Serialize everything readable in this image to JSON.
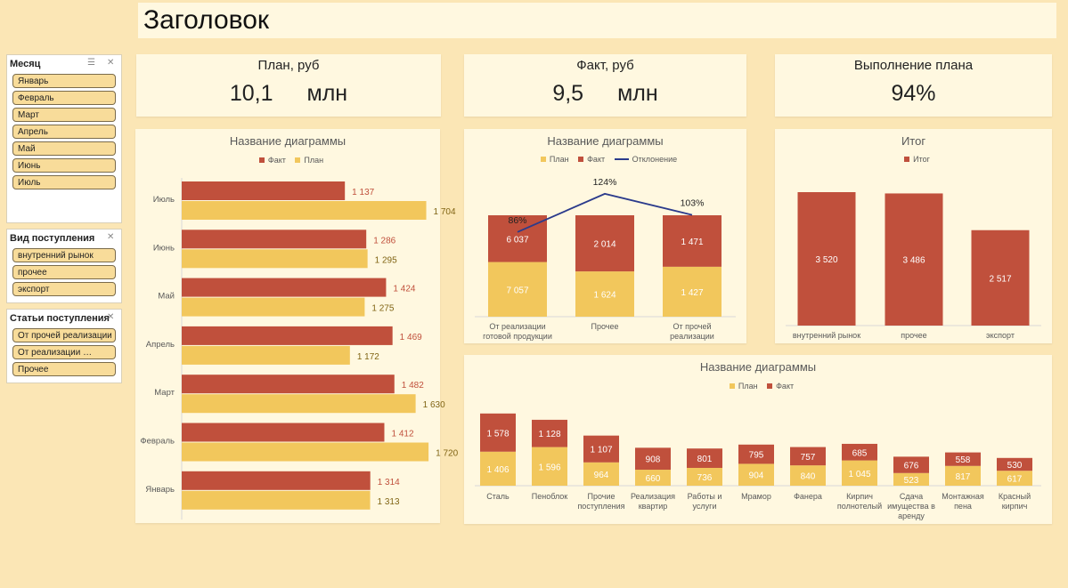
{
  "header": {
    "title": "Заголовок"
  },
  "colors": {
    "plan": "#f2c75c",
    "fact": "#c0503c",
    "deviation": "#2b3b8c",
    "panel": "#fff8e0",
    "background": "#fbe6b5"
  },
  "slicers": [
    {
      "title": "Месяц",
      "items": [
        "Январь",
        "Февраль",
        "Март",
        "Апрель",
        "Май",
        "Июнь",
        "Июль"
      ]
    },
    {
      "title": "Вид поступления",
      "items": [
        "внутренний рынок",
        "прочее",
        "экспорт"
      ]
    },
    {
      "title": "Статьи поступления",
      "items": [
        "От прочей реализации",
        "От реализации …",
        "Прочее"
      ]
    }
  ],
  "kpis": {
    "plan": {
      "title": "План, руб",
      "value": "10,1",
      "unit": "млн"
    },
    "fact": {
      "title": "Факт, руб",
      "value": "9,5",
      "unit": "млн"
    },
    "completion": {
      "title": "Выполнение плана",
      "value": "94%"
    }
  },
  "chart_data": [
    {
      "type": "bar",
      "orientation": "horizontal",
      "title": "Название диаграммы",
      "legend": [
        "Факт",
        "План"
      ],
      "legend_position": "top",
      "categories": [
        "Июль",
        "Июнь",
        "Май",
        "Апрель",
        "Март",
        "Февраль",
        "Январь"
      ],
      "series": [
        {
          "name": "Факт",
          "values": [
            1137,
            1286,
            1424,
            1469,
            1482,
            1412,
            1314
          ],
          "labels": [
            "1 137",
            "1 286",
            "1 424",
            "1 469",
            "1 482",
            "1 412",
            "1 314"
          ]
        },
        {
          "name": "План",
          "values": [
            1704,
            1295,
            1275,
            1172,
            1630,
            1720,
            1313
          ],
          "labels": [
            "1 704",
            "1 295",
            "1 275",
            "1 172",
            "1 630",
            "1 720",
            "1 313"
          ]
        }
      ],
      "xlim": [
        0,
        1800
      ]
    },
    {
      "type": "bar",
      "stacked": true,
      "title": "Название диаграммы",
      "legend": [
        "План",
        "Факт",
        "Отклонение"
      ],
      "legend_position": "top",
      "categories": [
        "От реализации готовой продукции",
        "Прочее",
        "От прочей реализации"
      ],
      "category_lines": [
        [
          "От реализации",
          "готовой продукции"
        ],
        [
          "Прочее"
        ],
        [
          "От прочей",
          "реализации"
        ]
      ],
      "series": [
        {
          "name": "План",
          "values": [
            7057,
            1624,
            1427
          ],
          "labels": [
            "7 057",
            "1 624",
            "1 427"
          ]
        },
        {
          "name": "Факт",
          "values": [
            6037,
            2014,
            1471
          ],
          "labels": [
            "6 037",
            "2 014",
            "1 471"
          ]
        },
        {
          "name": "Отклонение",
          "type": "line",
          "values": [
            86,
            124,
            103
          ],
          "labels": [
            "86%",
            "124%",
            "103%"
          ]
        }
      ]
    },
    {
      "type": "bar",
      "title": "Итог",
      "legend": [
        "Итог"
      ],
      "legend_position": "top",
      "categories": [
        "внутренний рынок",
        "прочее",
        "экспорт"
      ],
      "series": [
        {
          "name": "Итог",
          "values": [
            3520,
            3486,
            2517
          ],
          "labels": [
            "3 520",
            "3 486",
            "2 517"
          ]
        }
      ],
      "ylim": [
        0,
        3600
      ]
    },
    {
      "type": "bar",
      "stacked": true,
      "title": "Название диаграммы",
      "legend": [
        "План",
        "Факт"
      ],
      "legend_position": "top",
      "categories": [
        "Сталь",
        "Пеноблок",
        "Прочие поступления",
        "Реализация квартир",
        "Работы и услуги",
        "Мрамор",
        "Фанера",
        "Кирпич полнотелый",
        "Сдача имущества в аренду",
        "Монтажная пена",
        "Красный кирпич"
      ],
      "category_lines": [
        [
          "Сталь"
        ],
        [
          "Пеноблок"
        ],
        [
          "Прочие",
          "поступления"
        ],
        [
          "Реализация",
          "квартир"
        ],
        [
          "Работы и",
          "услуги"
        ],
        [
          "Мрамор"
        ],
        [
          "Фанера"
        ],
        [
          "Кирпич",
          "полнотелый"
        ],
        [
          "Сдача",
          "имущества в",
          "аренду"
        ],
        [
          "Монтажная",
          "пена"
        ],
        [
          "Красный",
          "кирпич"
        ]
      ],
      "series": [
        {
          "name": "План",
          "values": [
            1406,
            1596,
            964,
            660,
            736,
            904,
            840,
            1045,
            523,
            817,
            617
          ],
          "labels": [
            "1 406",
            "1 596",
            "964",
            "660",
            "736",
            "904",
            "840",
            "1 045",
            "523",
            "817",
            "617"
          ]
        },
        {
          "name": "Факт",
          "values": [
            1578,
            1128,
            1107,
            908,
            801,
            795,
            757,
            685,
            676,
            558,
            530
          ],
          "labels": [
            "1 578",
            "1 128",
            "1 107",
            "908",
            "801",
            "795",
            "757",
            "685",
            "676",
            "558",
            "530"
          ]
        }
      ]
    }
  ]
}
